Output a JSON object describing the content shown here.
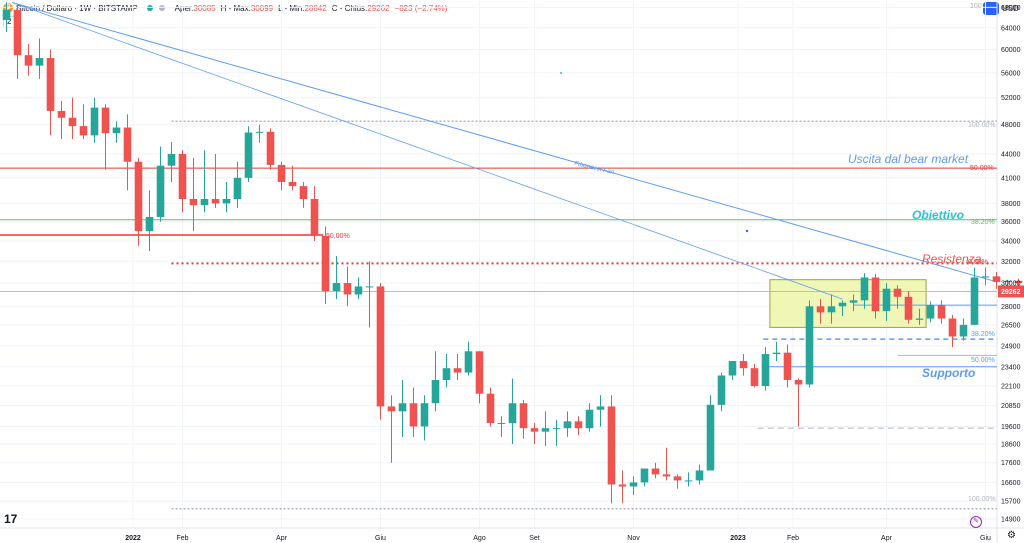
{
  "header": {
    "symbol": "Bitcoin / Dollaro · 1W · BITSTAMP",
    "coin_glyph": "₿",
    "open_label": "Aper.",
    "open": "30085",
    "high_label": "H - Max.",
    "high": "30099",
    "low_label": "L - Min.",
    "low": "28842",
    "close_label": "C - Chius.",
    "close": "29262",
    "change": "−823 (−2.74%)",
    "collapse": "2",
    "currency": "USD"
  },
  "brand": {
    "logo_text": "17"
  },
  "colors": {
    "up": "#26a69a",
    "down": "#ef5350",
    "grid": "#f0f3fa",
    "trend": "#5b9cf6",
    "red_line": "#e53935",
    "green_line": "#66bb6a",
    "fib_gray": "#b2b5be",
    "zone_fill": "#f0f7b6",
    "zone_border": "#9aa24a",
    "label_blue": "#5b9cf6",
    "label_teal": "#26c6da",
    "label_red": "#ef5350",
    "price_tag": "#ef5350"
  },
  "chart_data": {
    "type": "candlestick",
    "timeframe": "1W",
    "exchange": "BITSTAMP",
    "ylim": [
      14500,
      69500
    ],
    "y_scale": "log",
    "y_ticks": [
      14900,
      15700,
      16600,
      17600,
      18600,
      19600,
      20850,
      22100,
      23400,
      24900,
      26500,
      28000,
      30000,
      32000,
      34000,
      36000,
      38000,
      41000,
      44000,
      48000,
      52000,
      56000,
      60000,
      64000,
      68000
    ],
    "y_tick_labels": [
      "14900",
      "15700",
      "16600",
      "17600",
      "18600",
      "19600",
      "20850",
      "22100",
      "23400",
      "24900",
      "26500",
      "28000",
      "30000",
      "32000",
      "34000",
      "36000",
      "38000",
      "41000",
      "44000",
      "48000",
      "52000",
      "56000",
      "60000",
      "64000",
      "68000"
    ],
    "x_labels": [
      {
        "label": "2022",
        "week": 11.5
      },
      {
        "label": "Feb",
        "week": 16
      },
      {
        "label": "Apr",
        "week": 25
      },
      {
        "label": "Giu",
        "week": 34
      },
      {
        "label": "Ago",
        "week": 43
      },
      {
        "label": "Set",
        "week": 48
      },
      {
        "label": "Nov",
        "week": 57
      },
      {
        "label": "2023",
        "week": 66.5
      },
      {
        "label": "Feb",
        "week": 71.5
      },
      {
        "label": "Apr",
        "week": 80
      },
      {
        "label": "Giu",
        "week": 89
      }
    ],
    "last_price": "29262",
    "candles": [
      [
        65500,
        69000,
        63200,
        67500
      ],
      [
        67500,
        68500,
        55000,
        59000
      ],
      [
        59000,
        61000,
        55500,
        57200
      ],
      [
        57200,
        62000,
        55000,
        58500
      ],
      [
        58500,
        60000,
        46500,
        50000
      ],
      [
        50000,
        51500,
        46000,
        49000
      ],
      [
        49000,
        52000,
        46000,
        47800
      ],
      [
        47800,
        51000,
        46000,
        46500
      ],
      [
        46500,
        52000,
        45500,
        50500
      ],
      [
        50500,
        51000,
        42000,
        46800
      ],
      [
        46800,
        48500,
        45500,
        47600
      ],
      [
        47600,
        49500,
        39500,
        43000
      ],
      [
        43000,
        43500,
        33500,
        35000
      ],
      [
        35000,
        39500,
        33000,
        36500
      ],
      [
        36500,
        45000,
        36000,
        42500
      ],
      [
        42500,
        45600,
        40500,
        44000
      ],
      [
        44000,
        44500,
        37000,
        38500
      ],
      [
        38500,
        43500,
        35000,
        37800
      ],
      [
        37800,
        44500,
        37000,
        38500
      ],
      [
        38500,
        44000,
        37500,
        38000
      ],
      [
        38000,
        40500,
        37000,
        38500
      ],
      [
        38500,
        43000,
        37500,
        41000
      ],
      [
        41000,
        47800,
        40500,
        46900
      ],
      [
        46900,
        48000,
        45500,
        47000
      ],
      [
        47000,
        47500,
        42000,
        42600
      ],
      [
        42600,
        43000,
        39500,
        40500
      ],
      [
        40500,
        42500,
        39500,
        40000
      ],
      [
        40000,
        40500,
        37500,
        38500
      ],
      [
        38500,
        40000,
        34000,
        34500
      ],
      [
        34500,
        35500,
        28200,
        29300
      ],
      [
        29300,
        32500,
        28600,
        30000
      ],
      [
        30000,
        31500,
        28000,
        29000
      ],
      [
        29000,
        30500,
        28600,
        29700
      ],
      [
        29700,
        32000,
        26300,
        29700
      ],
      [
        29700,
        30000,
        20000,
        20800
      ],
      [
        20800,
        21500,
        17600,
        20500
      ],
      [
        20500,
        22500,
        19000,
        21000
      ],
      [
        21000,
        22000,
        19000,
        19600
      ],
      [
        19600,
        21500,
        18800,
        21000
      ],
      [
        21000,
        24500,
        20500,
        22500
      ],
      [
        22500,
        24300,
        22000,
        23300
      ],
      [
        23300,
        24300,
        22500,
        23000
      ],
      [
        23000,
        25200,
        22800,
        24500
      ],
      [
        24500,
        24500,
        21000,
        21600
      ],
      [
        21600,
        22000,
        19600,
        19800
      ],
      [
        19800,
        20200,
        19000,
        19800
      ],
      [
        19800,
        22600,
        18600,
        21000
      ],
      [
        21000,
        21200,
        18900,
        19500
      ],
      [
        19500,
        19800,
        18600,
        19300
      ],
      [
        19300,
        20500,
        18500,
        19500
      ],
      [
        19500,
        20000,
        18500,
        19500
      ],
      [
        19500,
        20500,
        19000,
        19900
      ],
      [
        19900,
        20200,
        19100,
        19500
      ],
      [
        19500,
        21000,
        19300,
        20600
      ],
      [
        20600,
        21500,
        19600,
        20800
      ],
      [
        20800,
        21500,
        15600,
        16500
      ],
      [
        16500,
        17200,
        15600,
        16400
      ],
      [
        16400,
        16900,
        16000,
        16600
      ],
      [
        16600,
        17300,
        16400,
        17300
      ],
      [
        17300,
        17600,
        16800,
        17000
      ],
      [
        17000,
        18400,
        16700,
        16900
      ],
      [
        16900,
        17000,
        16300,
        16700
      ],
      [
        16700,
        17100,
        16400,
        16700
      ],
      [
        16700,
        17500,
        16500,
        17200
      ],
      [
        17200,
        21500,
        17200,
        20900
      ],
      [
        20900,
        23000,
        20500,
        22800
      ],
      [
        22800,
        23800,
        22500,
        23800
      ],
      [
        23800,
        24300,
        22800,
        23300
      ],
      [
        23300,
        23600,
        22000,
        22100
      ],
      [
        22100,
        24800,
        21800,
        24300
      ],
      [
        24300,
        25200,
        23800,
        24400
      ],
      [
        24400,
        25000,
        22000,
        22500
      ],
      [
        22500,
        22600,
        19600,
        22200
      ],
      [
        22200,
        28500,
        22000,
        28000
      ],
      [
        28000,
        28600,
        26600,
        27500
      ],
      [
        27500,
        29000,
        26600,
        28000
      ],
      [
        28000,
        28500,
        27200,
        28300
      ],
      [
        28300,
        29000,
        27600,
        28500
      ],
      [
        28500,
        30900,
        27800,
        30500
      ],
      [
        30500,
        30800,
        27000,
        27600
      ],
      [
        27600,
        30000,
        26800,
        29500
      ],
      [
        29500,
        29800,
        27800,
        28800
      ],
      [
        28800,
        29300,
        26600,
        26900
      ],
      [
        26900,
        27800,
        26500,
        27000
      ],
      [
        27000,
        28400,
        26700,
        28100
      ],
      [
        28100,
        28500,
        26600,
        27000
      ],
      [
        27000,
        27300,
        24800,
        25600
      ],
      [
        25600,
        27000,
        25300,
        26500
      ],
      [
        26500,
        31400,
        26500,
        30500
      ],
      [
        30500,
        31400,
        29800,
        30600
      ],
      [
        30600,
        31000,
        29500,
        30100
      ],
      [
        30100,
        30300,
        29500,
        30200
      ],
      [
        30200,
        30400,
        29600,
        30000
      ],
      [
        30085,
        30099,
        28842,
        29262
      ]
    ],
    "annotations": {
      "uscita": "Uscita dal bear market",
      "obiettivo": "Obiettivo",
      "resistenza": "Resistenza",
      "supporto": "Supporto",
      "fib_fan": "Fibonacci Fan",
      "fib_100_top": "100.00%",
      "fib_50_top": "50.00%",
      "fib_382_top": "38.20%",
      "fib_0": "0.00%",
      "fib_382_bottom": "38.20%",
      "fib_50_bottom": "50.00%",
      "fib_100_bottom": "100.00%",
      "left_50": "50.00%",
      "top_right_100": "100"
    },
    "levels": {
      "fib_100_top": 48500,
      "fib_50_top": 42200,
      "fib_382_top": 36200,
      "left_50": 34600,
      "resistenza": 31800,
      "price_line": 29262,
      "zone_top": 30300,
      "zone_bottom": 26300,
      "fib_382_bottom": 25400,
      "fib_50_bottom": 23400,
      "fib_100_bottom": 15350,
      "gray_dash": 19500
    }
  }
}
